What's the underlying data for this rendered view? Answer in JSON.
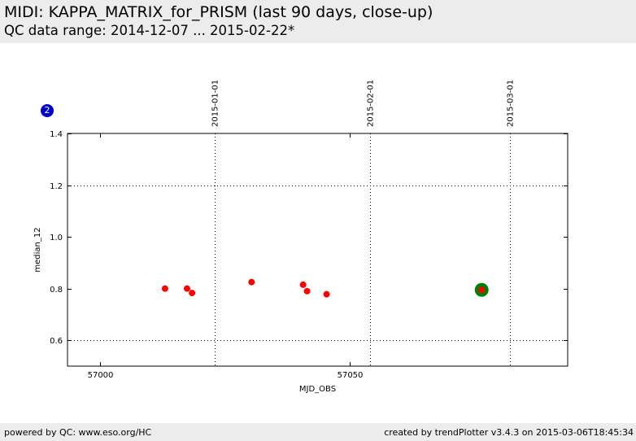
{
  "header": {
    "title": "MIDI: KAPPA_MATRIX_for_PRISM (last 90 days, close-up)",
    "subtitle": "QC data range: 2014-12-07 ... 2015-02-22*"
  },
  "badge": {
    "label": "2",
    "color": "#0000cc"
  },
  "footer": {
    "left": "powered by QC: www.eso.org/HC",
    "right": "created by trendPlotter v3.4.3 on 2015-03-06T18:45:34"
  },
  "chart_data": {
    "type": "scatter",
    "xlabel": "MJD_OBS",
    "ylabel": "median_12",
    "xlim": [
      56993.5,
      57093.5
    ],
    "ylim": [
      0.5,
      1.4
    ],
    "x_ticks": [
      57000,
      57050
    ],
    "y_ticks": [
      0.6,
      0.8,
      1.0,
      1.2,
      1.4
    ],
    "y_grid": [
      0.6,
      1.2
    ],
    "date_markers": [
      {
        "mjd": 57023,
        "label": "2015-01-01"
      },
      {
        "mjd": 57054,
        "label": "2015-02-01"
      },
      {
        "mjd": 57082,
        "label": "2015-03-01"
      }
    ],
    "series": [
      {
        "name": "median_12",
        "color": "#ff0000",
        "points": [
          {
            "x": 57013.0,
            "y": 0.8
          },
          {
            "x": 57017.4,
            "y": 0.8
          },
          {
            "x": 57018.4,
            "y": 0.783
          },
          {
            "x": 57030.3,
            "y": 0.825
          },
          {
            "x": 57040.6,
            "y": 0.815
          },
          {
            "x": 57041.4,
            "y": 0.79
          },
          {
            "x": 57045.3,
            "y": 0.778
          },
          {
            "x": 57076.3,
            "y": 0.795
          }
        ]
      }
    ],
    "highlight": {
      "x": 57076.3,
      "y": 0.795,
      "color": "#008000"
    }
  }
}
